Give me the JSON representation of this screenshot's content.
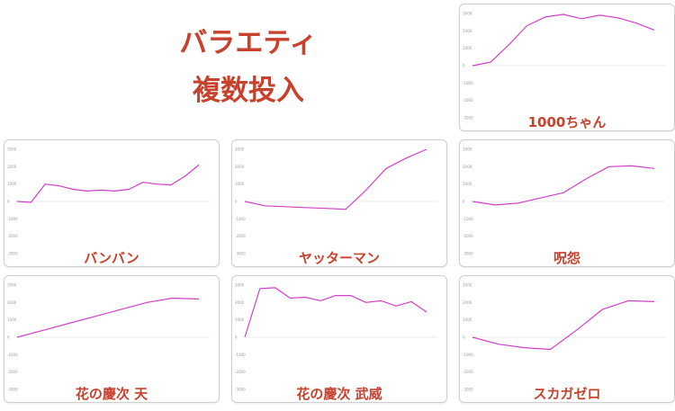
{
  "header": {
    "line1": "バラエティ",
    "line2": "複数投入"
  },
  "colors": {
    "title": "#c8412c",
    "line": "#d43fc8",
    "zero_line": "#e0e0e0"
  },
  "chart_data": [
    {
      "type": "line",
      "title": "1000ちゃん",
      "ylim": [
        -3000,
        3000
      ],
      "yticks": [
        "3000",
        "2000",
        "1000",
        "0",
        "-1000",
        "-2000",
        "-3000"
      ],
      "y": [
        0,
        200,
        1200,
        2300,
        2800,
        2950,
        2700,
        2900,
        2750,
        2450,
        2050
      ]
    },
    {
      "type": "line",
      "title": "バンバン",
      "ylim": [
        -3000,
        3000
      ],
      "yticks": [
        "3000",
        "2000",
        "1000",
        "0",
        "-1000",
        "-2000",
        "-3000"
      ],
      "y": [
        0,
        -50,
        1000,
        900,
        700,
        600,
        650,
        600,
        700,
        1100,
        1000,
        950,
        1450,
        2100
      ]
    },
    {
      "type": "line",
      "title": "ヤッターマン",
      "ylim": [
        -3000,
        3000
      ],
      "yticks": [
        "3000",
        "2000",
        "1000",
        "0",
        "-1000",
        "-2000",
        "-3000"
      ],
      "y": [
        0,
        -250,
        -300,
        -350,
        -400,
        -450,
        650,
        1900,
        2500,
        3000
      ]
    },
    {
      "type": "line",
      "title": "呪怨",
      "ylim": [
        -3000,
        3000
      ],
      "yticks": [
        "3000",
        "2000",
        "1000",
        "0",
        "-1000",
        "-2000",
        "-3000"
      ],
      "y": [
        0,
        -200,
        -100,
        200,
        500,
        1300,
        2000,
        2050,
        1900
      ]
    },
    {
      "type": "line",
      "title": "花の慶次 天",
      "ylim": [
        -3000,
        3000
      ],
      "yticks": [
        "3000",
        "2000",
        "1000",
        "0",
        "-1000",
        "-2000",
        "-3000"
      ],
      "y": [
        0,
        400,
        800,
        1200,
        1600,
        2000,
        2250,
        2200
      ]
    },
    {
      "type": "line",
      "title": "花の慶次 武威",
      "ylim": [
        -3000,
        3000
      ],
      "yticks": [
        "3000",
        "2000",
        "1000",
        "0",
        "-1000",
        "-2000",
        "-3000"
      ],
      "y": [
        0,
        2800,
        2850,
        2250,
        2300,
        2100,
        2400,
        2400,
        2000,
        2100,
        1800,
        2050,
        1450
      ]
    },
    {
      "type": "line",
      "title": "スカガゼロ",
      "ylim": [
        -3000,
        3000
      ],
      "yticks": [
        "3000",
        "2000",
        "1000",
        "0",
        "-1000",
        "-2000",
        "-3000"
      ],
      "y": [
        0,
        -400,
        -600,
        -700,
        400,
        1600,
        2100,
        2050
      ]
    }
  ]
}
